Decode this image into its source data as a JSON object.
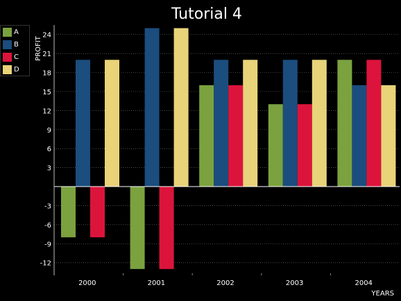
{
  "chart_data": {
    "type": "bar",
    "title": "Tutorial 4",
    "xlabel": "YEARS",
    "ylabel": "PROFIT",
    "categories": [
      "2000",
      "2001",
      "2002",
      "2003",
      "2004"
    ],
    "ylim": [
      -14,
      25.5
    ],
    "yticks": [
      -12,
      -9,
      -6,
      -3,
      3,
      6,
      9,
      12,
      15,
      18,
      21,
      24
    ],
    "grid": true,
    "legend_position": "top-left",
    "series": [
      {
        "name": "A",
        "color": "#7ba23f",
        "values": [
          -8,
          -13,
          16,
          13,
          20
        ]
      },
      {
        "name": "B",
        "color": "#1b4d7e",
        "values": [
          20,
          25,
          20,
          20,
          16
        ]
      },
      {
        "name": "C",
        "color": "#dc143c",
        "values": [
          -8,
          -13,
          16,
          13,
          20
        ]
      },
      {
        "name": "D",
        "color": "#e8d379",
        "values": [
          20,
          25,
          20,
          20,
          16
        ]
      }
    ]
  }
}
